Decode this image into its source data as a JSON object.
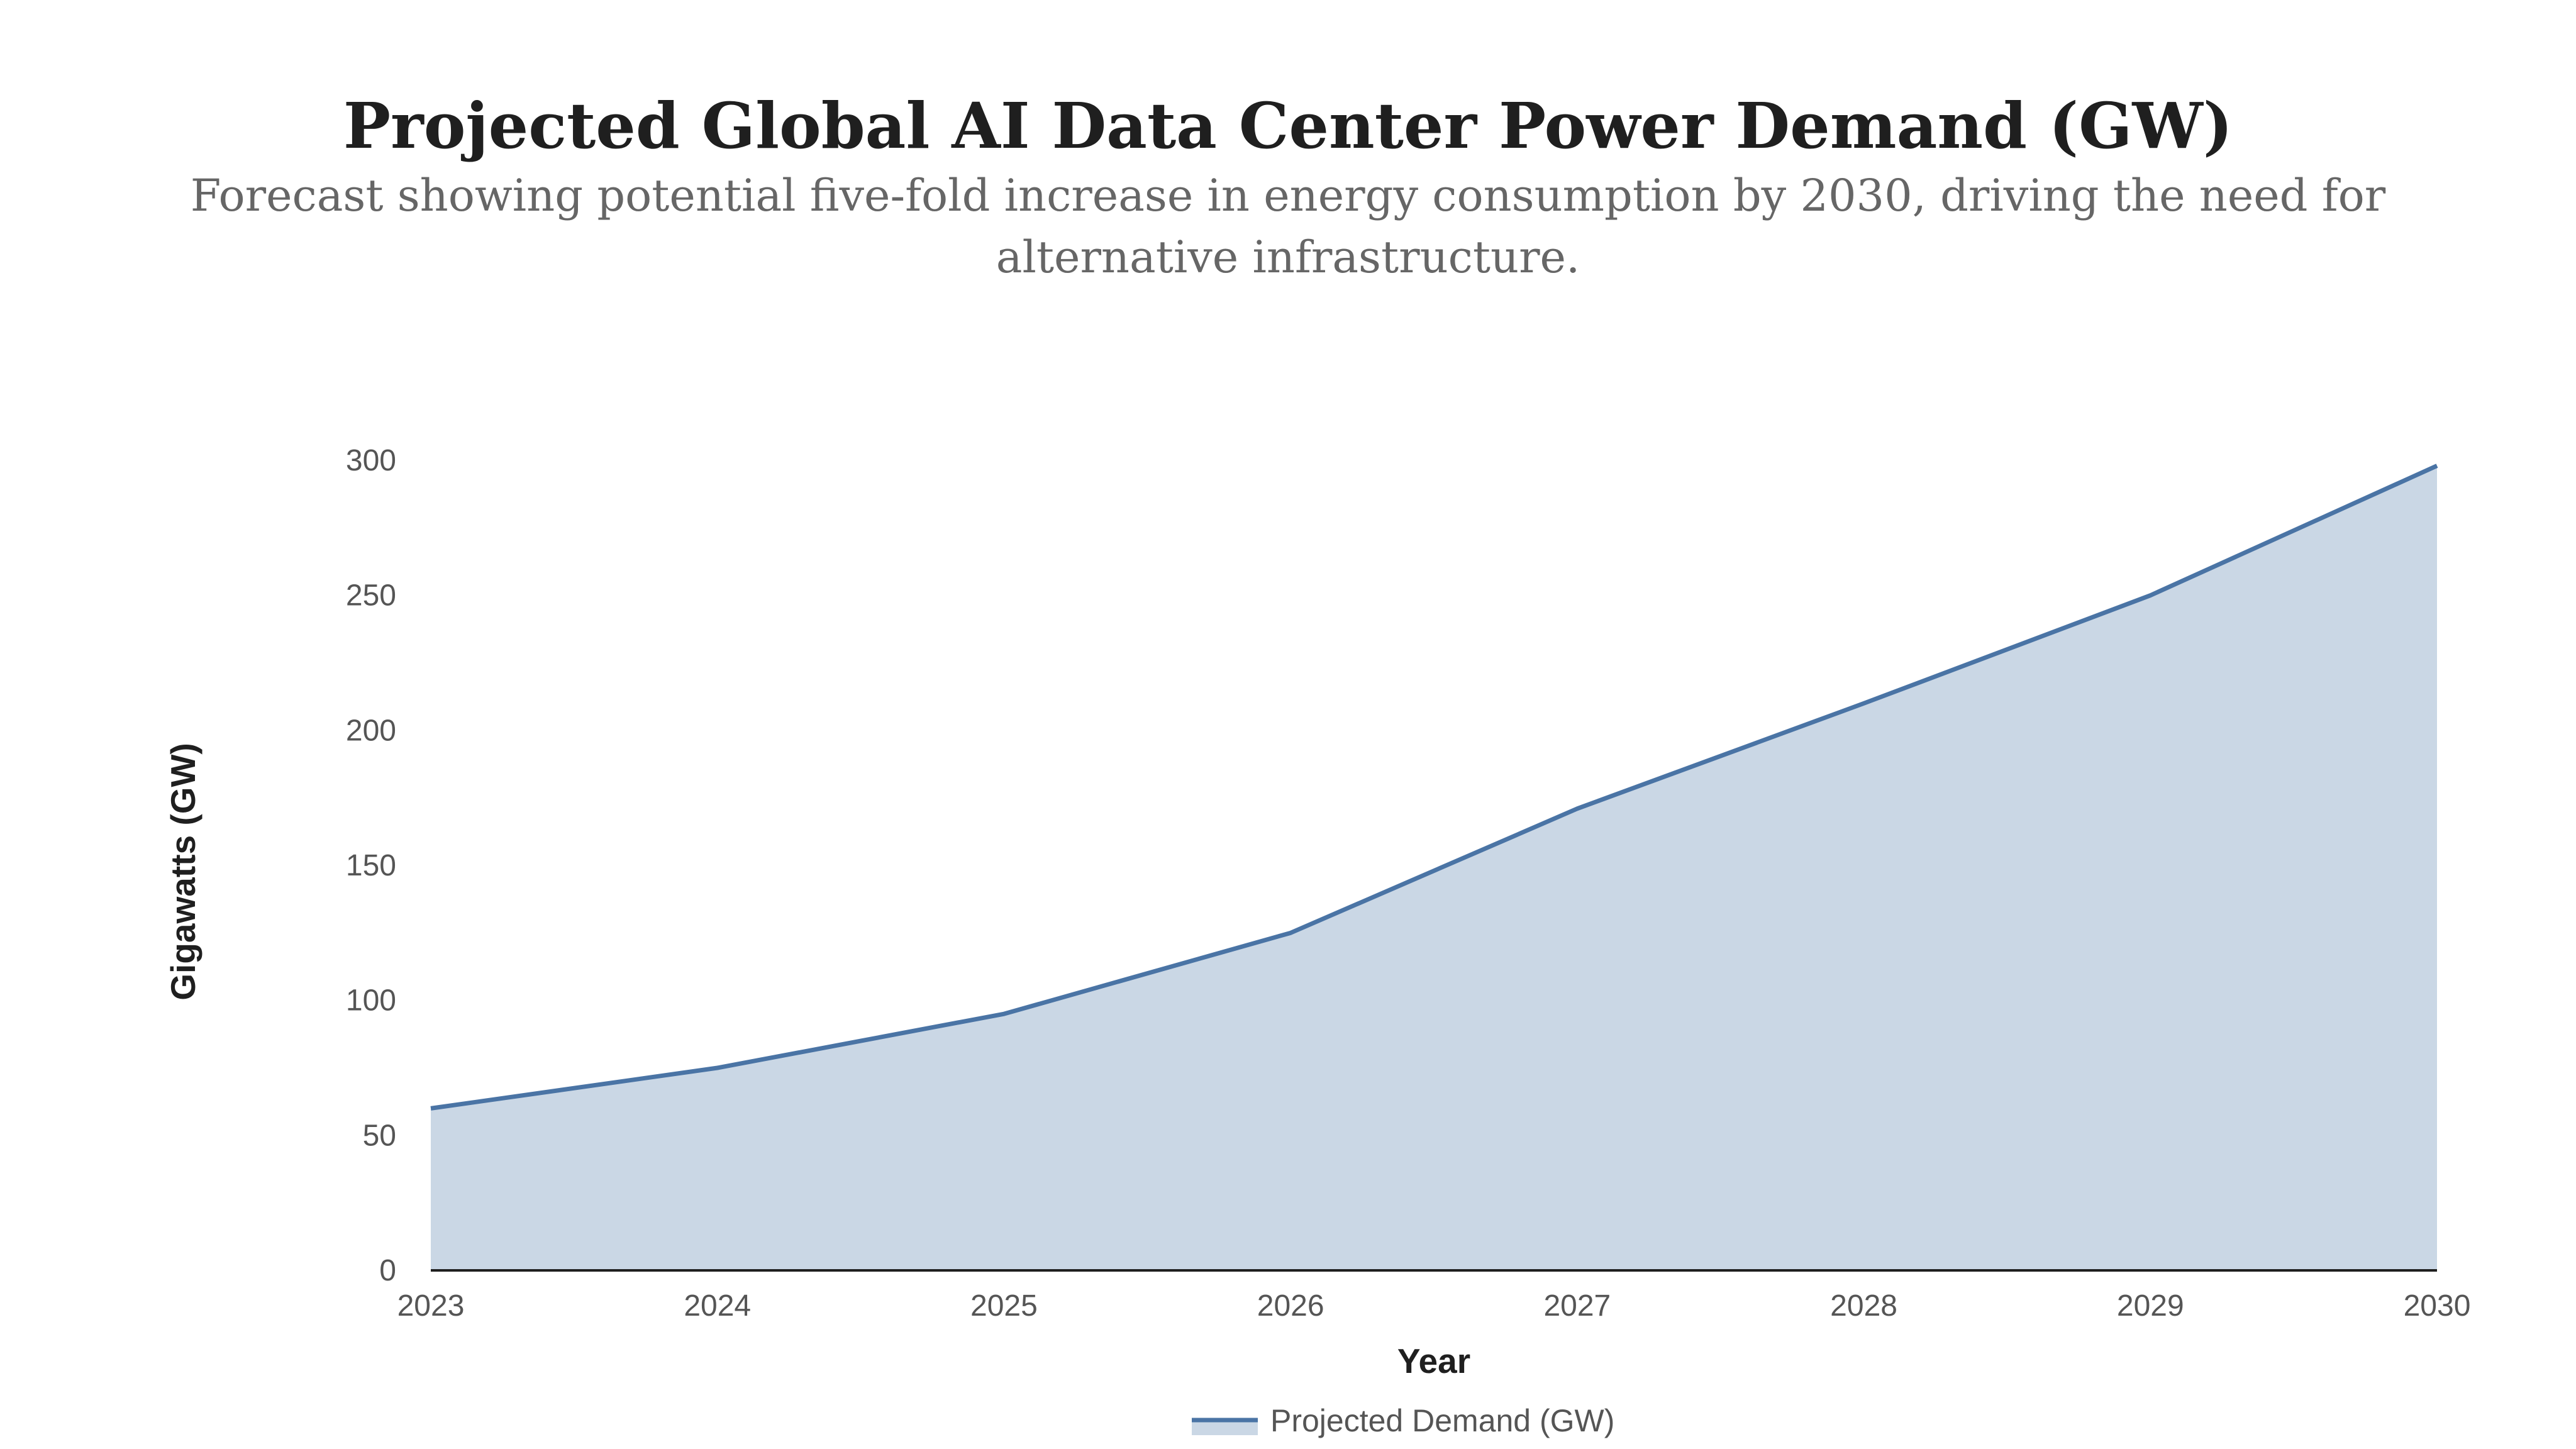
{
  "chart_data": {
    "type": "area",
    "title": "Projected Global AI Data Center Power Demand (GW)",
    "subtitle": "Forecast showing potential five-fold increase in energy consumption by 2030, driving the need for alternative infrastructure.",
    "xlabel": "Year",
    "ylabel": "Gigawatts (GW)",
    "x": [
      "2023",
      "2024",
      "2025",
      "2026",
      "2027",
      "2028",
      "2029",
      "2030"
    ],
    "series": [
      {
        "name": "Projected Demand (GW)",
        "values": [
          60,
          75,
          95,
          125,
          171,
          210,
          250,
          298
        ]
      }
    ],
    "ylim": [
      0,
      300
    ],
    "yticks": [
      0,
      50,
      100,
      150,
      200,
      250,
      300
    ],
    "grid": false,
    "legend_position": "bottom-center",
    "colors": {
      "line": "#4a74a5",
      "fill": "#cad7e5",
      "axis": "#1f1f1f"
    }
  }
}
